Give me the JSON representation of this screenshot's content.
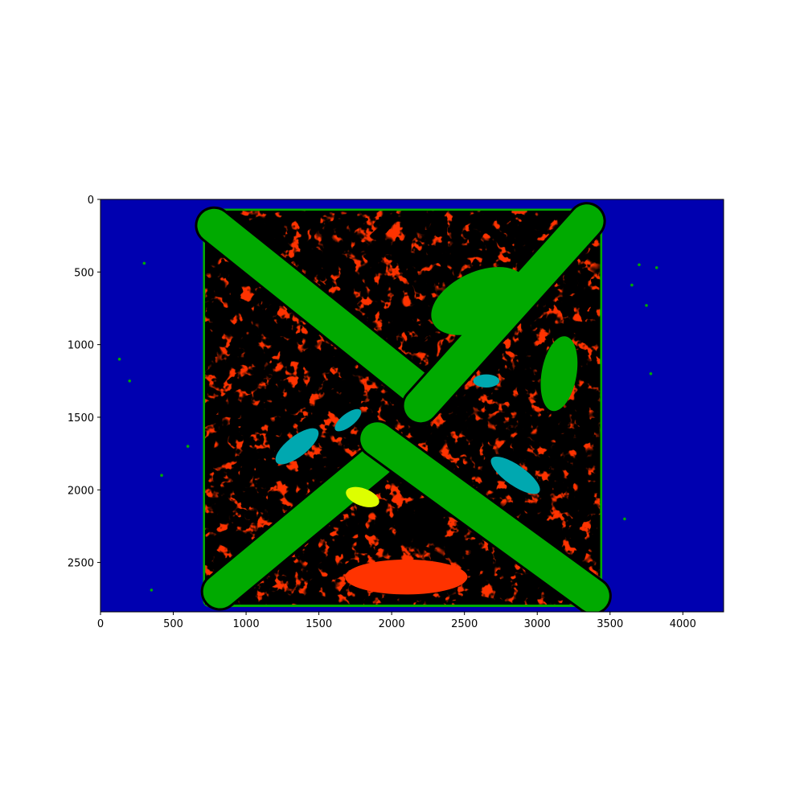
{
  "chart_data": {
    "type": "heatmap",
    "title": "",
    "xlabel": "",
    "ylabel": "",
    "xlim": [
      0,
      4280
    ],
    "ylim": [
      2840,
      0
    ],
    "y_axis_inverted": true,
    "x_ticks": [
      0,
      500,
      1000,
      1500,
      2000,
      2500,
      3000,
      3500,
      4000
    ],
    "y_ticks": [
      0,
      500,
      1000,
      1500,
      2000,
      2500
    ],
    "grid": false,
    "legend": "none",
    "colors": {
      "background": "#0000b0",
      "green": "#00aa00",
      "red": "#ff3300",
      "black": "#000000",
      "gray": "#c8c8c8",
      "yellow": "#ddff00",
      "cyan": "#00a8b0",
      "magenta": "#ff44aa"
    },
    "regions": {
      "square": {
        "x0": 720,
        "y0": 80,
        "x1": 3430,
        "y1": 2790
      },
      "stripe_width": 230,
      "stripe_a": {
        "from": [
          780,
          180
        ],
        "to": [
          2200,
          1320
        ]
      },
      "stripe_b": {
        "from": [
          3340,
          150
        ],
        "to": [
          2200,
          1420
        ]
      },
      "stripe_c": {
        "from": [
          820,
          2700
        ],
        "to": [
          1900,
          1800
        ]
      },
      "stripe_d": {
        "from": [
          1900,
          1650
        ],
        "to": [
          3380,
          2730
        ]
      }
    }
  }
}
